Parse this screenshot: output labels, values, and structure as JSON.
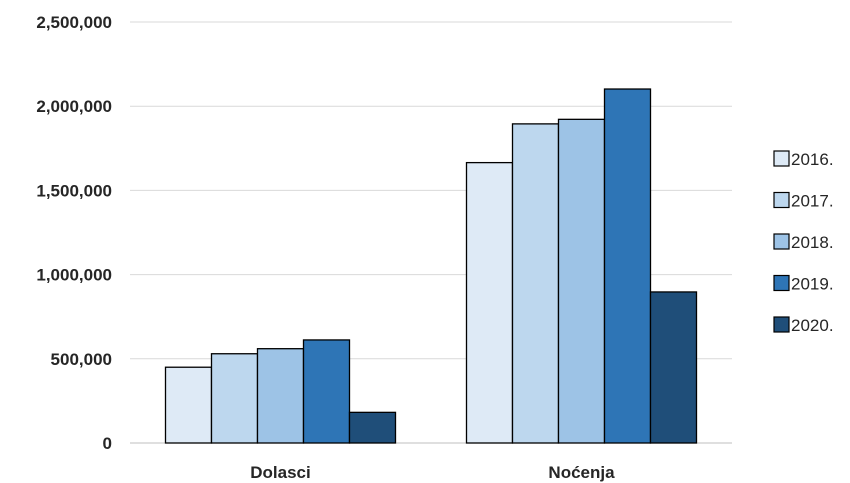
{
  "chart_data": {
    "type": "bar",
    "categories": [
      "Dolasci",
      "Noćenja"
    ],
    "series": [
      {
        "name": "2016.",
        "values": [
          450000,
          1665000
        ],
        "color": "#deeaf6"
      },
      {
        "name": "2017.",
        "values": [
          530000,
          1895000
        ],
        "color": "#bdd7ee"
      },
      {
        "name": "2018.",
        "values": [
          560000,
          1922000
        ],
        "color": "#9dc3e6"
      },
      {
        "name": "2019.",
        "values": [
          612000,
          2102000
        ],
        "color": "#2e75b6"
      },
      {
        "name": "2020.",
        "values": [
          182000,
          897000
        ],
        "color": "#1f4e79"
      }
    ],
    "y_ticks": [
      "0",
      "500,000",
      "1,000,000",
      "1,500,000",
      "2,000,000",
      "2,500,000"
    ],
    "ylim": [
      0,
      2500000
    ],
    "grid": true,
    "legend_position": "right"
  }
}
